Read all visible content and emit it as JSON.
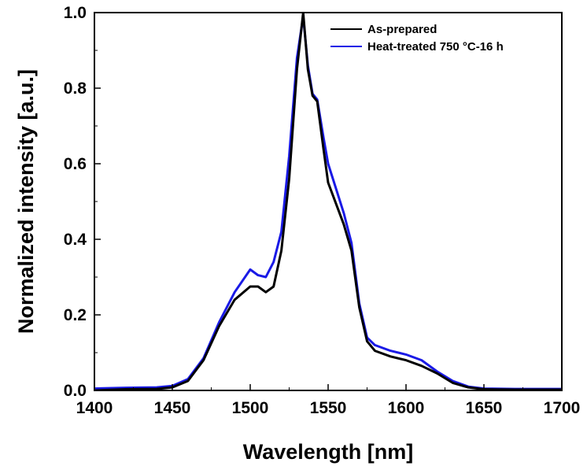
{
  "chart_data": {
    "type": "line",
    "xlabel": "Wavelength [nm]",
    "ylabel": "Normalized intensity [a.u.]",
    "xlim": [
      1400,
      1700
    ],
    "ylim": [
      0,
      1.0
    ],
    "x_ticks": [
      1400,
      1450,
      1500,
      1550,
      1600,
      1650,
      1700
    ],
    "y_ticks": [
      "0.0",
      "0.2",
      "0.4",
      "0.6",
      "0.8",
      "1.0"
    ],
    "grid": false,
    "legend_position": "top-right",
    "series": [
      {
        "name": "As-prepared",
        "color": "#000000",
        "points": [
          [
            1400,
            0.0
          ],
          [
            1420,
            0.003
          ],
          [
            1440,
            0.004
          ],
          [
            1450,
            0.008
          ],
          [
            1460,
            0.025
          ],
          [
            1470,
            0.08
          ],
          [
            1480,
            0.17
          ],
          [
            1490,
            0.24
          ],
          [
            1500,
            0.275
          ],
          [
            1505,
            0.275
          ],
          [
            1510,
            0.26
          ],
          [
            1515,
            0.275
          ],
          [
            1520,
            0.37
          ],
          [
            1525,
            0.56
          ],
          [
            1530,
            0.85
          ],
          [
            1534,
            1.0
          ],
          [
            1537,
            0.85
          ],
          [
            1540,
            0.78
          ],
          [
            1543,
            0.765
          ],
          [
            1547,
            0.64
          ],
          [
            1550,
            0.55
          ],
          [
            1560,
            0.44
          ],
          [
            1565,
            0.37
          ],
          [
            1570,
            0.22
          ],
          [
            1575,
            0.13
          ],
          [
            1580,
            0.105
          ],
          [
            1590,
            0.09
          ],
          [
            1600,
            0.08
          ],
          [
            1610,
            0.065
          ],
          [
            1620,
            0.045
          ],
          [
            1630,
            0.02
          ],
          [
            1640,
            0.008
          ],
          [
            1650,
            0.003
          ],
          [
            1670,
            0.002
          ],
          [
            1700,
            0.002
          ]
        ]
      },
      {
        "name": "Heat-treated 750 °C-16 h",
        "color": "#1a1ae6",
        "points": [
          [
            1400,
            0.005
          ],
          [
            1420,
            0.007
          ],
          [
            1440,
            0.008
          ],
          [
            1450,
            0.012
          ],
          [
            1460,
            0.03
          ],
          [
            1470,
            0.085
          ],
          [
            1480,
            0.18
          ],
          [
            1490,
            0.26
          ],
          [
            1495,
            0.29
          ],
          [
            1500,
            0.32
          ],
          [
            1505,
            0.305
          ],
          [
            1510,
            0.3
          ],
          [
            1515,
            0.34
          ],
          [
            1520,
            0.42
          ],
          [
            1525,
            0.62
          ],
          [
            1530,
            0.88
          ],
          [
            1534,
            0.99
          ],
          [
            1537,
            0.86
          ],
          [
            1540,
            0.785
          ],
          [
            1543,
            0.77
          ],
          [
            1547,
            0.67
          ],
          [
            1550,
            0.6
          ],
          [
            1560,
            0.47
          ],
          [
            1565,
            0.39
          ],
          [
            1570,
            0.23
          ],
          [
            1575,
            0.14
          ],
          [
            1580,
            0.12
          ],
          [
            1590,
            0.105
          ],
          [
            1600,
            0.095
          ],
          [
            1610,
            0.08
          ],
          [
            1620,
            0.05
          ],
          [
            1630,
            0.025
          ],
          [
            1640,
            0.01
          ],
          [
            1650,
            0.005
          ],
          [
            1670,
            0.004
          ],
          [
            1700,
            0.004
          ]
        ]
      }
    ]
  }
}
